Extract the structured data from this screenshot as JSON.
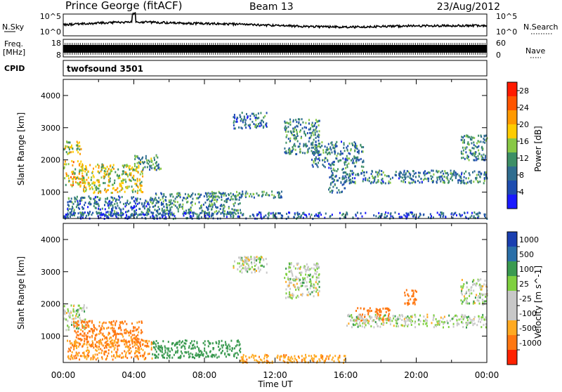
{
  "header": {
    "station": "Prince George (fitACF)",
    "beam": "Beam 13",
    "date": "23/Aug/2012"
  },
  "noise_panel": {
    "left_label": "N.Sky",
    "left_ticks": [
      "10^5",
      "10^0"
    ],
    "right_ticks": [
      "10^5",
      "10^0"
    ],
    "right_label": "N.Search"
  },
  "freq_panel": {
    "left_label_1": "Freq.",
    "left_label_2": "[MHz]",
    "left_ticks": [
      "18",
      "8"
    ],
    "right_ticks": [
      "60",
      "0"
    ],
    "right_label": "Nave"
  },
  "cpid": {
    "label": "CPID",
    "value": "twofsound 3501"
  },
  "x_axis": {
    "label": "Time UT",
    "ticks": [
      "00:00",
      "04:00",
      "08:00",
      "12:00",
      "16:00",
      "20:00",
      "00:00"
    ]
  },
  "colors": {
    "power_scale": [
      "#1a1aff",
      "#1e4db0",
      "#2f6d8f",
      "#3d8f66",
      "#88c845",
      "#ffcc00",
      "#ff9900",
      "#ff5500",
      "#ff1a00"
    ],
    "velocity_scale": [
      "#1a3fb0",
      "#2a6fa8",
      "#3a9a50",
      "#7fd040",
      "#c8c8c8",
      "#c8c8c8",
      "#ffaa22",
      "#ff7711",
      "#ff2200"
    ]
  },
  "chart_data": [
    {
      "type": "heatmap",
      "title": "Power",
      "xlabel": "Time UT",
      "ylabel": "Slant Range [km]",
      "x_ticks": [
        "00:00",
        "04:00",
        "08:00",
        "12:00",
        "16:00",
        "20:00",
        "00:00"
      ],
      "xlim_hours": [
        0,
        24
      ],
      "ylim": [
        180,
        4500
      ],
      "y_ticks": [
        1000,
        2000,
        3000,
        4000
      ],
      "colorbar": {
        "label": "Power [dB]",
        "ticks": [
          4,
          8,
          12,
          16,
          20,
          24,
          28
        ],
        "range": [
          0,
          30
        ]
      },
      "regions": [
        {
          "t": [
            0,
            1.3
          ],
          "r": [
            1200,
            2000
          ],
          "value": 18
        },
        {
          "t": [
            0,
            1.0
          ],
          "r": [
            2200,
            2600
          ],
          "value": 16
        },
        {
          "t": [
            1.0,
            4.5
          ],
          "r": [
            1000,
            1900
          ],
          "value": 17
        },
        {
          "t": [
            4.0,
            5.5
          ],
          "r": [
            1700,
            2200
          ],
          "value": 12
        },
        {
          "t": [
            0.2,
            5.0
          ],
          "r": [
            300,
            900
          ],
          "value": 8
        },
        {
          "t": [
            5,
            10
          ],
          "r": [
            350,
            1000
          ],
          "value": 10
        },
        {
          "t": [
            8,
            12.5
          ],
          "r": [
            850,
            1050
          ],
          "value": 10
        },
        {
          "t": [
            9.6,
            11.5
          ],
          "r": [
            3000,
            3500
          ],
          "value": 8
        },
        {
          "t": [
            12.5,
            14.5
          ],
          "r": [
            2200,
            3300
          ],
          "value": 10
        },
        {
          "t": [
            14,
            17
          ],
          "r": [
            1800,
            2600
          ],
          "value": 9
        },
        {
          "t": [
            15,
            16
          ],
          "r": [
            1000,
            1800
          ],
          "value": 8
        },
        {
          "t": [
            16,
            24
          ],
          "r": [
            1300,
            1700
          ],
          "value": 9
        },
        {
          "t": [
            22.5,
            24
          ],
          "r": [
            2000,
            2800
          ],
          "value": 10
        },
        {
          "t": [
            0,
            24
          ],
          "r": [
            200,
            400
          ],
          "value": 6
        }
      ]
    },
    {
      "type": "heatmap",
      "title": "Velocity",
      "xlabel": "Time UT",
      "ylabel": "Slant Range [km]",
      "x_ticks": [
        "00:00",
        "04:00",
        "08:00",
        "12:00",
        "16:00",
        "20:00",
        "00:00"
      ],
      "xlim_hours": [
        0,
        24
      ],
      "ylim": [
        180,
        4500
      ],
      "y_ticks": [
        1000,
        2000,
        3000,
        4000
      ],
      "colorbar": {
        "label": "Velocity [m s^-1]",
        "ticks": [
          "1000",
          "500",
          "100",
          "25",
          "-25",
          "-100",
          "-500",
          "-1000"
        ]
      },
      "regions": [
        {
          "t": [
            0,
            1.3
          ],
          "r": [
            1200,
            2000
          ],
          "value": 0
        },
        {
          "t": [
            0.5,
            4.5
          ],
          "r": [
            700,
            1500
          ],
          "value": -120
        },
        {
          "t": [
            0.2,
            5.0
          ],
          "r": [
            300,
            900
          ],
          "value": -100
        },
        {
          "t": [
            5,
            10
          ],
          "r": [
            350,
            900
          ],
          "value": 60
        },
        {
          "t": [
            9.6,
            11.5
          ],
          "r": [
            3000,
            3500
          ],
          "value": 0
        },
        {
          "t": [
            12.5,
            14.5
          ],
          "r": [
            2200,
            3300
          ],
          "value": 0
        },
        {
          "t": [
            16.5,
            18.5
          ],
          "r": [
            1500,
            1900
          ],
          "value": -200
        },
        {
          "t": [
            19.3,
            20.0
          ],
          "r": [
            2000,
            2500
          ],
          "value": -300
        },
        {
          "t": [
            16,
            24
          ],
          "r": [
            1300,
            1700
          ],
          "value": 0
        },
        {
          "t": [
            22.5,
            24
          ],
          "r": [
            2000,
            2800
          ],
          "value": 0
        },
        {
          "t": [
            10,
            16
          ],
          "r": [
            200,
            450
          ],
          "value": -80
        }
      ]
    }
  ]
}
